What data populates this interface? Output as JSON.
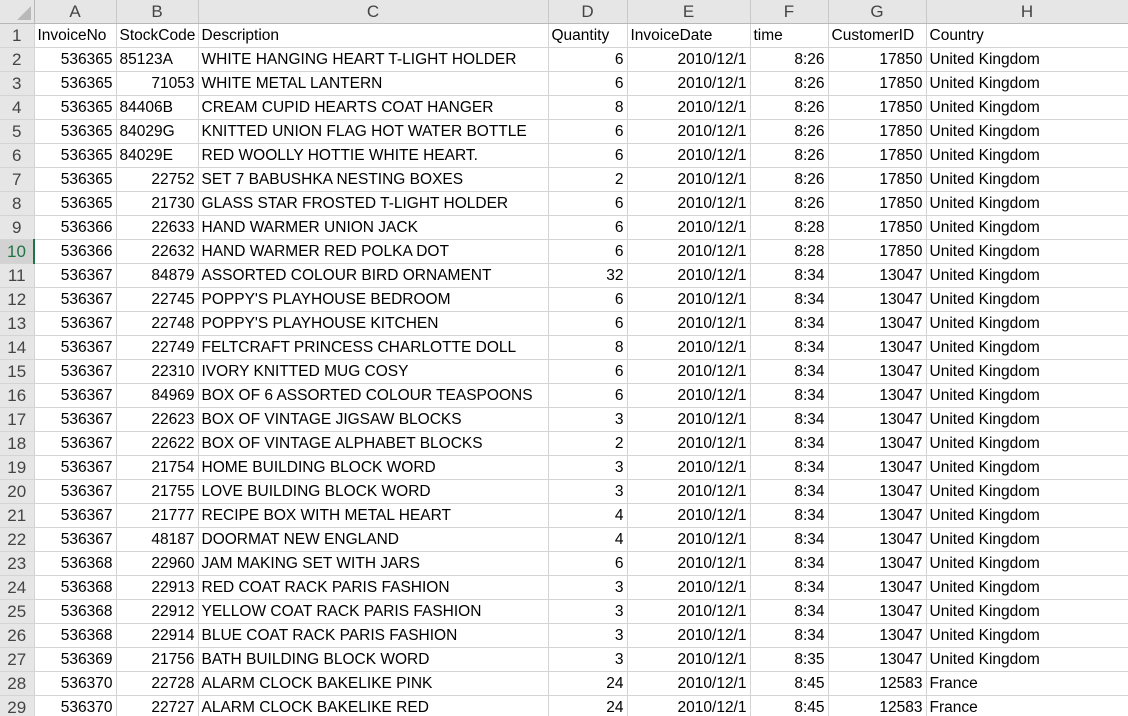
{
  "sheet": {
    "corner_icon": "select-all-triangle-icon",
    "columns": [
      "A",
      "B",
      "C",
      "D",
      "E",
      "F",
      "G",
      "H"
    ],
    "selected_row": "10",
    "header_row": {
      "row_number": "1",
      "cells": [
        "InvoiceNo",
        "StockCode",
        "Description",
        "Quantity",
        "InvoiceDate",
        "time",
        "CustomerID",
        "Country"
      ]
    },
    "rows": [
      {
        "n": "2",
        "cells": [
          "536365",
          "85123A",
          "WHITE HANGING HEART T-LIGHT HOLDER",
          "6",
          "2010/12/1",
          "8:26",
          "17850",
          "United Kingdom"
        ]
      },
      {
        "n": "3",
        "cells": [
          "536365",
          "71053",
          "WHITE METAL LANTERN",
          "6",
          "2010/12/1",
          "8:26",
          "17850",
          "United Kingdom"
        ]
      },
      {
        "n": "4",
        "cells": [
          "536365",
          "84406B",
          "CREAM CUPID HEARTS COAT HANGER",
          "8",
          "2010/12/1",
          "8:26",
          "17850",
          "United Kingdom"
        ]
      },
      {
        "n": "5",
        "cells": [
          "536365",
          "84029G",
          "KNITTED UNION FLAG HOT WATER BOTTLE",
          "6",
          "2010/12/1",
          "8:26",
          "17850",
          "United Kingdom"
        ]
      },
      {
        "n": "6",
        "cells": [
          "536365",
          "84029E",
          "RED WOOLLY HOTTIE WHITE HEART.",
          "6",
          "2010/12/1",
          "8:26",
          "17850",
          "United Kingdom"
        ]
      },
      {
        "n": "7",
        "cells": [
          "536365",
          "22752",
          "SET 7 BABUSHKA NESTING BOXES",
          "2",
          "2010/12/1",
          "8:26",
          "17850",
          "United Kingdom"
        ]
      },
      {
        "n": "8",
        "cells": [
          "536365",
          "21730",
          "GLASS STAR FROSTED T-LIGHT HOLDER",
          "6",
          "2010/12/1",
          "8:26",
          "17850",
          "United Kingdom"
        ]
      },
      {
        "n": "9",
        "cells": [
          "536366",
          "22633",
          "HAND WARMER UNION JACK",
          "6",
          "2010/12/1",
          "8:28",
          "17850",
          "United Kingdom"
        ]
      },
      {
        "n": "10",
        "cells": [
          "536366",
          "22632",
          "HAND WARMER RED POLKA DOT",
          "6",
          "2010/12/1",
          "8:28",
          "17850",
          "United Kingdom"
        ]
      },
      {
        "n": "11",
        "cells": [
          "536367",
          "84879",
          "ASSORTED COLOUR BIRD ORNAMENT",
          "32",
          "2010/12/1",
          "8:34",
          "13047",
          "United Kingdom"
        ]
      },
      {
        "n": "12",
        "cells": [
          "536367",
          "22745",
          "POPPY'S PLAYHOUSE BEDROOM",
          "6",
          "2010/12/1",
          "8:34",
          "13047",
          "United Kingdom"
        ]
      },
      {
        "n": "13",
        "cells": [
          "536367",
          "22748",
          "POPPY'S PLAYHOUSE KITCHEN",
          "6",
          "2010/12/1",
          "8:34",
          "13047",
          "United Kingdom"
        ]
      },
      {
        "n": "14",
        "cells": [
          "536367",
          "22749",
          "FELTCRAFT PRINCESS CHARLOTTE DOLL",
          "8",
          "2010/12/1",
          "8:34",
          "13047",
          "United Kingdom"
        ]
      },
      {
        "n": "15",
        "cells": [
          "536367",
          "22310",
          "IVORY KNITTED MUG COSY",
          "6",
          "2010/12/1",
          "8:34",
          "13047",
          "United Kingdom"
        ]
      },
      {
        "n": "16",
        "cells": [
          "536367",
          "84969",
          "BOX OF 6 ASSORTED COLOUR TEASPOONS",
          "6",
          "2010/12/1",
          "8:34",
          "13047",
          "United Kingdom"
        ]
      },
      {
        "n": "17",
        "cells": [
          "536367",
          "22623",
          "BOX OF VINTAGE JIGSAW BLOCKS",
          "3",
          "2010/12/1",
          "8:34",
          "13047",
          "United Kingdom"
        ]
      },
      {
        "n": "18",
        "cells": [
          "536367",
          "22622",
          "BOX OF VINTAGE ALPHABET BLOCKS",
          "2",
          "2010/12/1",
          "8:34",
          "13047",
          "United Kingdom"
        ]
      },
      {
        "n": "19",
        "cells": [
          "536367",
          "21754",
          "HOME BUILDING BLOCK WORD",
          "3",
          "2010/12/1",
          "8:34",
          "13047",
          "United Kingdom"
        ]
      },
      {
        "n": "20",
        "cells": [
          "536367",
          "21755",
          "LOVE BUILDING BLOCK WORD",
          "3",
          "2010/12/1",
          "8:34",
          "13047",
          "United Kingdom"
        ]
      },
      {
        "n": "21",
        "cells": [
          "536367",
          "21777",
          "RECIPE BOX WITH METAL HEART",
          "4",
          "2010/12/1",
          "8:34",
          "13047",
          "United Kingdom"
        ]
      },
      {
        "n": "22",
        "cells": [
          "536367",
          "48187",
          "DOORMAT NEW ENGLAND",
          "4",
          "2010/12/1",
          "8:34",
          "13047",
          "United Kingdom"
        ]
      },
      {
        "n": "23",
        "cells": [
          "536368",
          "22960",
          "JAM MAKING SET WITH JARS",
          "6",
          "2010/12/1",
          "8:34",
          "13047",
          "United Kingdom"
        ]
      },
      {
        "n": "24",
        "cells": [
          "536368",
          "22913",
          "RED COAT RACK PARIS FASHION",
          "3",
          "2010/12/1",
          "8:34",
          "13047",
          "United Kingdom"
        ]
      },
      {
        "n": "25",
        "cells": [
          "536368",
          "22912",
          "YELLOW COAT RACK PARIS FASHION",
          "3",
          "2010/12/1",
          "8:34",
          "13047",
          "United Kingdom"
        ]
      },
      {
        "n": "26",
        "cells": [
          "536368",
          "22914",
          "BLUE COAT RACK PARIS FASHION",
          "3",
          "2010/12/1",
          "8:34",
          "13047",
          "United Kingdom"
        ]
      },
      {
        "n": "27",
        "cells": [
          "536369",
          "21756",
          "BATH BUILDING BLOCK WORD",
          "3",
          "2010/12/1",
          "8:35",
          "13047",
          "United Kingdom"
        ]
      },
      {
        "n": "28",
        "cells": [
          "536370",
          "22728",
          "ALARM CLOCK BAKELIKE PINK",
          "24",
          "2010/12/1",
          "8:45",
          "12583",
          "France"
        ]
      },
      {
        "n": "29",
        "cells": [
          "536370",
          "22727",
          "ALARM CLOCK BAKELIKE RED",
          "24",
          "2010/12/1",
          "8:45",
          "12583",
          "France"
        ]
      }
    ]
  }
}
